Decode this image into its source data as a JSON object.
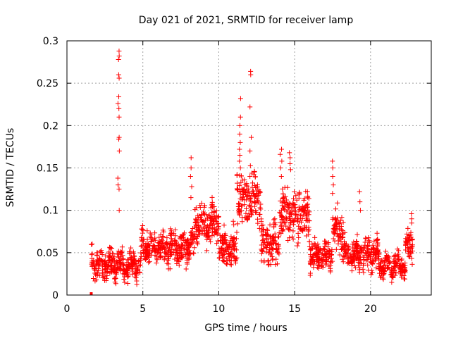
{
  "chart_data": {
    "type": "scatter",
    "title": "Day 021 of 2021, SRMTID for receiver lamp",
    "xlabel": "GPS time / hours",
    "ylabel": "SRMTID / TECUs",
    "xlim": [
      0,
      24
    ],
    "ylim": [
      0,
      0.3
    ],
    "xticks": [
      "0",
      "5",
      "10",
      "15",
      "20"
    ],
    "yticks": [
      "0",
      "0.05",
      "0.1",
      "0.15",
      "0.2",
      "0.25",
      "0.3"
    ],
    "grid": true,
    "marker": "plus",
    "color": "#ff0000",
    "segments": [
      {
        "t0": 1.6,
        "t1": 4.9,
        "base": 0.036,
        "spread": 0.012
      },
      {
        "t0": 4.9,
        "t1": 8.4,
        "base": 0.055,
        "spread": 0.014
      },
      {
        "t0": 8.4,
        "t1": 10.0,
        "base": 0.085,
        "spread": 0.018
      },
      {
        "t0": 10.0,
        "t1": 11.2,
        "base": 0.055,
        "spread": 0.015
      },
      {
        "t0": 11.2,
        "t1": 12.8,
        "base": 0.115,
        "spread": 0.025
      },
      {
        "t0": 12.8,
        "t1": 14.0,
        "base": 0.06,
        "spread": 0.018
      },
      {
        "t0": 14.0,
        "t1": 16.0,
        "base": 0.095,
        "spread": 0.022
      },
      {
        "t0": 16.0,
        "t1": 17.5,
        "base": 0.048,
        "spread": 0.012
      },
      {
        "t0": 17.5,
        "t1": 18.2,
        "base": 0.075,
        "spread": 0.018
      },
      {
        "t0": 18.2,
        "t1": 20.5,
        "base": 0.048,
        "spread": 0.014
      },
      {
        "t0": 20.5,
        "t1": 22.3,
        "base": 0.035,
        "spread": 0.01
      },
      {
        "t0": 22.3,
        "t1": 22.8,
        "base": 0.06,
        "spread": 0.015
      }
    ],
    "spikes": [
      {
        "x": 3.4,
        "values": [
          0.288,
          0.282,
          0.278,
          0.26,
          0.256,
          0.234,
          0.226,
          0.22,
          0.21,
          0.186,
          0.184,
          0.17,
          0.138,
          0.13,
          0.125,
          0.1
        ]
      },
      {
        "x": 8.2,
        "values": [
          0.162,
          0.15,
          0.14,
          0.128,
          0.115
        ]
      },
      {
        "x": 11.4,
        "values": [
          0.232,
          0.21,
          0.2,
          0.19,
          0.18,
          0.172,
          0.165,
          0.158,
          0.15
        ]
      },
      {
        "x": 12.1,
        "values": [
          0.264,
          0.26,
          0.222,
          0.186,
          0.17
        ]
      },
      {
        "x": 14.1,
        "values": [
          0.172,
          0.166,
          0.158,
          0.15,
          0.14
        ]
      },
      {
        "x": 14.7,
        "values": [
          0.168,
          0.162,
          0.155,
          0.148
        ]
      },
      {
        "x": 17.5,
        "values": [
          0.158,
          0.15,
          0.14,
          0.13,
          0.12
        ]
      },
      {
        "x": 19.3,
        "values": [
          0.122,
          0.11,
          0.1
        ]
      },
      {
        "x": 22.7,
        "values": [
          0.096,
          0.09,
          0.085
        ]
      }
    ]
  }
}
